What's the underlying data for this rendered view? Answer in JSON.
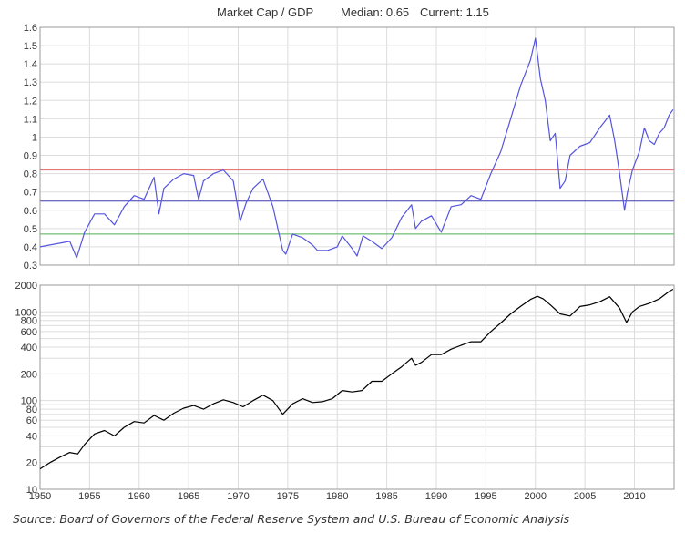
{
  "chart_data": [
    {
      "type": "line",
      "title": "Market Cap / GDP",
      "median_label": "Median: 0.65",
      "current_label": "Current: 1.15",
      "ylim": [
        0.3,
        1.6
      ],
      "yticks": [
        0.3,
        0.4,
        0.5,
        0.6,
        0.7,
        0.8,
        0.9,
        1,
        1.1,
        1.2,
        1.3,
        1.4,
        1.5,
        1.6
      ],
      "xlim": [
        1950,
        2014
      ],
      "xticks": [
        1950,
        1955,
        1960,
        1965,
        1970,
        1975,
        1980,
        1985,
        1990,
        1995,
        2000,
        2005,
        2010
      ],
      "grid": true,
      "reference_lines": [
        {
          "value": 0.82,
          "color": "#e06666"
        },
        {
          "value": 0.65,
          "color": "#3b3bb0"
        },
        {
          "value": 0.47,
          "color": "#4caf50"
        }
      ],
      "series": [
        {
          "color": "#5555dd",
          "x": [
            1950.0,
            1951.0,
            1952.0,
            1953.0,
            1953.7,
            1954.5,
            1955.5,
            1956.5,
            1957.5,
            1958.5,
            1959.5,
            1960.5,
            1961.5,
            1962.0,
            1962.5,
            1963.5,
            1964.5,
            1965.5,
            1966.0,
            1966.5,
            1967.5,
            1968.5,
            1969.5,
            1970.2,
            1970.8,
            1971.5,
            1972.5,
            1973.5,
            1974.5,
            1974.8,
            1975.5,
            1976.5,
            1977.5,
            1978.0,
            1979.0,
            1980.0,
            1980.5,
            1981.5,
            1982.0,
            1982.6,
            1983.5,
            1984.5,
            1985.5,
            1986.5,
            1987.5,
            1987.9,
            1988.5,
            1989.5,
            1990.5,
            1991.5,
            1992.5,
            1993.5,
            1994.5,
            1995.5,
            1996.5,
            1997.5,
            1998.5,
            1999.5,
            2000.0,
            2000.5,
            2001.0,
            2001.5,
            2002.0,
            2002.5,
            2003.0,
            2003.5,
            2004.5,
            2005.5,
            2006.5,
            2007.5,
            2008.0,
            2008.5,
            2009.0,
            2009.3,
            2009.8,
            2010.5,
            2011.0,
            2011.5,
            2012.0,
            2012.5,
            2013.0,
            2013.5,
            2013.9
          ],
          "values": [
            0.4,
            0.41,
            0.42,
            0.43,
            0.34,
            0.48,
            0.58,
            0.58,
            0.52,
            0.62,
            0.68,
            0.66,
            0.78,
            0.58,
            0.72,
            0.77,
            0.8,
            0.79,
            0.66,
            0.76,
            0.8,
            0.82,
            0.76,
            0.54,
            0.64,
            0.72,
            0.77,
            0.62,
            0.38,
            0.36,
            0.47,
            0.45,
            0.41,
            0.38,
            0.38,
            0.4,
            0.46,
            0.39,
            0.35,
            0.46,
            0.43,
            0.39,
            0.45,
            0.56,
            0.63,
            0.5,
            0.54,
            0.57,
            0.48,
            0.62,
            0.63,
            0.68,
            0.66,
            0.8,
            0.92,
            1.1,
            1.28,
            1.42,
            1.54,
            1.32,
            1.2,
            0.98,
            1.02,
            0.72,
            0.76,
            0.9,
            0.95,
            0.97,
            1.05,
            1.12,
            0.98,
            0.8,
            0.6,
            0.7,
            0.82,
            0.92,
            1.05,
            0.98,
            0.96,
            1.02,
            1.05,
            1.12,
            1.15
          ]
        }
      ]
    },
    {
      "type": "line",
      "scale": "log",
      "ylim": [
        10,
        2000
      ],
      "yticks": [
        10,
        20,
        40,
        60,
        80,
        100,
        200,
        400,
        600,
        800,
        1000,
        2000
      ],
      "xlim": [
        1950,
        2014
      ],
      "xticks": [
        1950,
        1955,
        1960,
        1965,
        1970,
        1975,
        1980,
        1985,
        1990,
        1995,
        2000,
        2005,
        2010
      ],
      "grid": true,
      "series": [
        {
          "color": "#000000",
          "x": [
            1950.0,
            1951.0,
            1952.0,
            1953.0,
            1953.8,
            1954.5,
            1955.5,
            1956.5,
            1957.5,
            1958.5,
            1959.5,
            1960.5,
            1961.5,
            1962.5,
            1963.5,
            1964.5,
            1965.5,
            1966.5,
            1967.5,
            1968.5,
            1969.5,
            1970.5,
            1971.5,
            1972.5,
            1973.5,
            1974.5,
            1975.5,
            1976.5,
            1977.5,
            1978.5,
            1979.5,
            1980.5,
            1981.5,
            1982.5,
            1983.5,
            1984.5,
            1985.5,
            1986.5,
            1987.5,
            1987.9,
            1988.5,
            1989.5,
            1990.5,
            1991.5,
            1992.5,
            1993.5,
            1994.5,
            1995.5,
            1996.5,
            1997.5,
            1998.5,
            1999.5,
            2000.2,
            2000.8,
            2001.5,
            2002.5,
            2003.5,
            2004.5,
            2005.5,
            2006.5,
            2007.5,
            2008.5,
            2009.2,
            2009.8,
            2010.5,
            2011.5,
            2012.5,
            2013.5,
            2013.9
          ],
          "values": [
            17,
            20,
            23,
            26,
            25,
            32,
            42,
            46,
            40,
            50,
            58,
            56,
            68,
            60,
            72,
            82,
            88,
            80,
            92,
            102,
            95,
            85,
            100,
            115,
            100,
            70,
            92,
            105,
            95,
            97,
            105,
            130,
            125,
            130,
            165,
            165,
            200,
            240,
            300,
            250,
            270,
            330,
            330,
            380,
            420,
            460,
            460,
            600,
            750,
            950,
            1150,
            1380,
            1500,
            1400,
            1200,
            950,
            900,
            1150,
            1200,
            1300,
            1480,
            1100,
            760,
            1000,
            1150,
            1250,
            1400,
            1700,
            1800
          ]
        }
      ]
    }
  ],
  "source_note": "Source: Board of Governors of the Federal Reserve System and U.S. Bureau of Economic Analysis"
}
